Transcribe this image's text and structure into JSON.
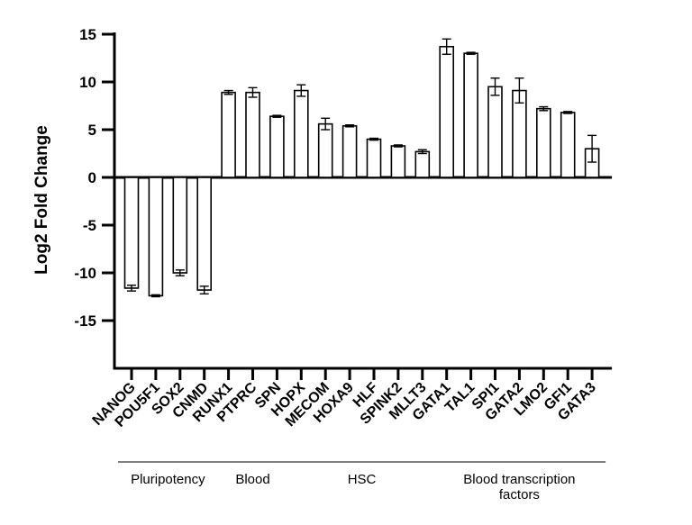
{
  "chart_data": {
    "type": "bar",
    "ylabel": "Log2 Fold Change",
    "ylim": [
      -20,
      15
    ],
    "yticks": [
      15,
      10,
      5,
      0,
      -5,
      -10,
      -15
    ],
    "categories": [
      "NANOG",
      "POU5F1",
      "SOX2",
      "CNMD",
      "RUNX1",
      "PTPRC",
      "SPN",
      "HOPX",
      "MECOM",
      "HOXA9",
      "HLF",
      "SPINK2",
      "MLLT3",
      "GATA1",
      "TAL1",
      "SPI1",
      "GATA2",
      "LMO2",
      "GFI1",
      "GATA3"
    ],
    "values": [
      -11.6,
      -12.4,
      -10.0,
      -11.8,
      8.9,
      8.9,
      6.4,
      9.1,
      5.6,
      5.4,
      4.0,
      3.3,
      2.7,
      13.7,
      13.0,
      9.5,
      9.1,
      7.2,
      6.8,
      3.0
    ],
    "errors": [
      0.3,
      0.1,
      0.3,
      0.4,
      0.2,
      0.5,
      0.1,
      0.6,
      0.6,
      0.1,
      0.1,
      0.1,
      0.2,
      0.8,
      0.1,
      0.9,
      1.3,
      0.2,
      0.1,
      1.4
    ],
    "groups": [
      {
        "name": "Pluripotency",
        "name_lines": [
          "Pluripotency"
        ],
        "start": 0,
        "end": 3
      },
      {
        "name": "Blood",
        "name_lines": [
          "Blood"
        ],
        "start": 4,
        "end": 6
      },
      {
        "name": "HSC",
        "name_lines": [
          "HSC"
        ],
        "start": 7,
        "end": 12
      },
      {
        "name": "Blood transcription factors",
        "name_lines": [
          "Blood transcription",
          "factors"
        ],
        "start": 13,
        "end": 19
      }
    ]
  }
}
